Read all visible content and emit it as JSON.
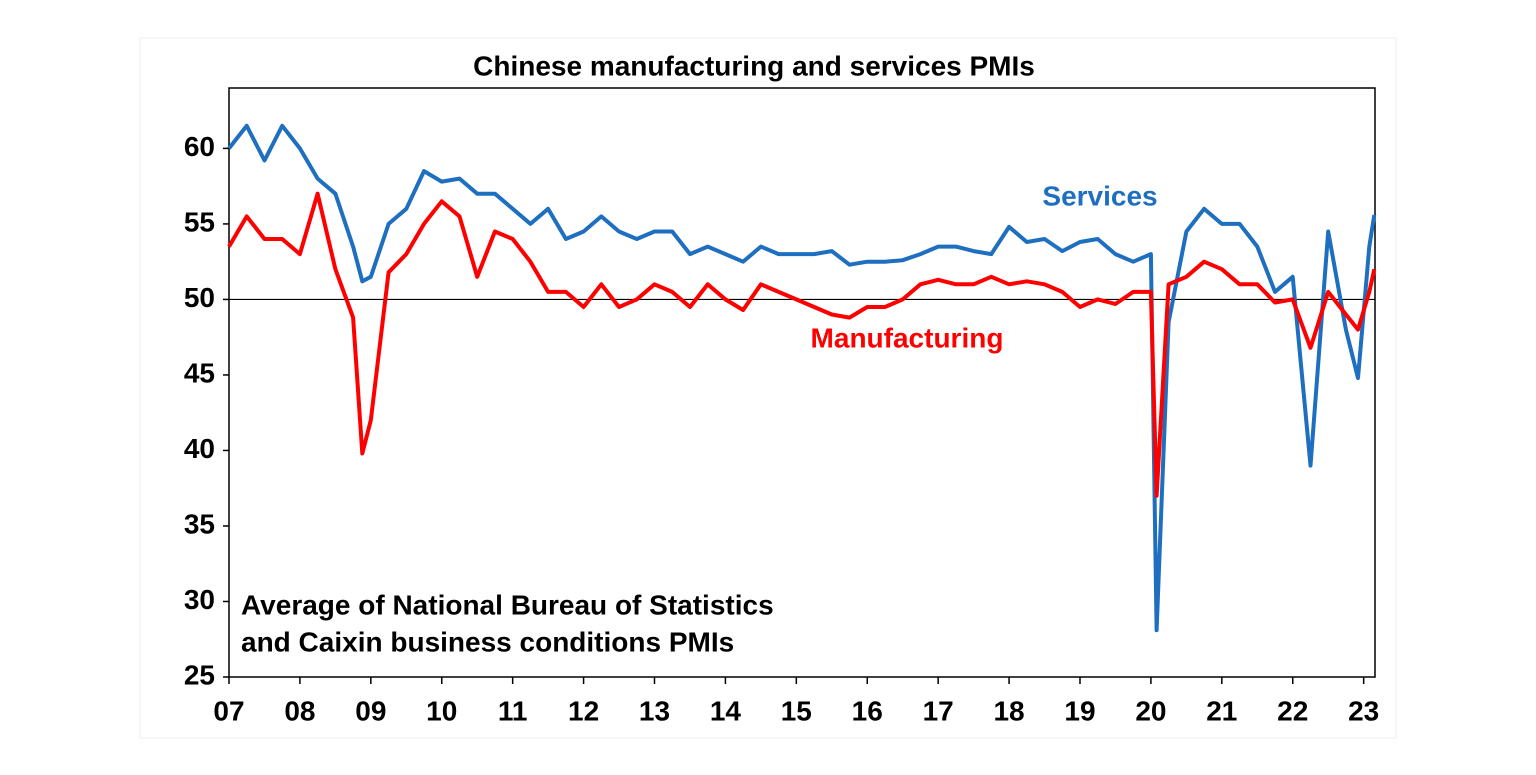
{
  "chart_data": {
    "type": "line",
    "title": "Chinese manufacturing and services PMIs",
    "annotations": [
      "Average of National Bureau of Statistics",
      "and Caixin business conditions PMIs"
    ],
    "x": [
      2007.0,
      2007.25,
      2007.5,
      2007.75,
      2008.0,
      2008.25,
      2008.5,
      2008.75,
      2008.88,
      2009.0,
      2009.25,
      2009.5,
      2009.75,
      2010.0,
      2010.25,
      2010.5,
      2010.75,
      2011.0,
      2011.25,
      2011.5,
      2011.75,
      2012.0,
      2012.25,
      2012.5,
      2012.75,
      2013.0,
      2013.25,
      2013.5,
      2013.75,
      2014.0,
      2014.25,
      2014.5,
      2014.75,
      2015.0,
      2015.25,
      2015.5,
      2015.75,
      2016.0,
      2016.25,
      2016.5,
      2016.75,
      2017.0,
      2017.25,
      2017.5,
      2017.75,
      2018.0,
      2018.25,
      2018.5,
      2018.75,
      2019.0,
      2019.25,
      2019.5,
      2019.75,
      2020.0,
      2020.08,
      2020.25,
      2020.5,
      2020.75,
      2021.0,
      2021.25,
      2021.5,
      2021.75,
      2022.0,
      2022.25,
      2022.5,
      2022.75,
      2022.92,
      2023.08,
      2023.15
    ],
    "series": [
      {
        "name": "Services",
        "color": "#1f6fc0",
        "values": [
          60,
          61.5,
          59.2,
          61.5,
          60,
          58,
          57,
          53.5,
          51.2,
          51.5,
          55,
          56,
          58.5,
          57.8,
          58,
          57,
          57,
          56,
          55,
          56,
          54,
          54.5,
          55.5,
          54.5,
          54,
          54.5,
          54.5,
          53,
          53.5,
          53,
          52.5,
          53.5,
          53,
          53,
          53,
          53.2,
          52.3,
          52.5,
          52.5,
          52.6,
          53,
          53.5,
          53.5,
          53.2,
          53,
          54.8,
          53.8,
          54,
          53.2,
          53.8,
          54,
          53,
          52.5,
          53,
          28.1,
          48.5,
          54.5,
          56,
          55,
          55,
          53.5,
          50.5,
          51.5,
          39,
          54.5,
          48,
          44.8,
          53.5,
          55.6
        ]
      },
      {
        "name": "Manufacturing",
        "color": "#ff0000",
        "values": [
          53.5,
          55.5,
          54,
          54,
          53,
          57,
          52,
          48.8,
          39.8,
          42,
          51.8,
          53,
          55,
          56.5,
          55.5,
          51.5,
          54.5,
          54,
          52.5,
          50.5,
          50.5,
          49.5,
          51,
          49.5,
          50,
          51,
          50.5,
          49.5,
          51,
          50,
          49.3,
          51,
          50.5,
          50,
          49.5,
          49,
          48.8,
          49.5,
          49.5,
          50,
          51,
          51.3,
          51,
          51,
          51.5,
          51,
          51.2,
          51,
          50.5,
          49.5,
          50,
          49.7,
          50.5,
          50.5,
          37,
          51,
          51.5,
          52.5,
          52,
          51,
          51,
          49.8,
          50,
          46.8,
          50.5,
          49,
          48,
          50.5,
          52
        ]
      }
    ],
    "reference_line": 50,
    "xlim": [
      2007,
      2023.16
    ],
    "xticks": [
      {
        "value": 2007,
        "label": "07"
      },
      {
        "value": 2008,
        "label": "08"
      },
      {
        "value": 2009,
        "label": "09"
      },
      {
        "value": 2010,
        "label": "10"
      },
      {
        "value": 2011,
        "label": "11"
      },
      {
        "value": 2012,
        "label": "12"
      },
      {
        "value": 2013,
        "label": "13"
      },
      {
        "value": 2014,
        "label": "14"
      },
      {
        "value": 2015,
        "label": "15"
      },
      {
        "value": 2016,
        "label": "16"
      },
      {
        "value": 2017,
        "label": "17"
      },
      {
        "value": 2018,
        "label": "18"
      },
      {
        "value": 2019,
        "label": "19"
      },
      {
        "value": 2020,
        "label": "20"
      },
      {
        "value": 2021,
        "label": "21"
      },
      {
        "value": 2022,
        "label": "22"
      },
      {
        "value": 2023,
        "label": "23"
      }
    ],
    "ylim": [
      25,
      64
    ],
    "yticks": [
      25,
      30,
      35,
      40,
      45,
      50,
      55,
      60
    ],
    "grid": false
  }
}
